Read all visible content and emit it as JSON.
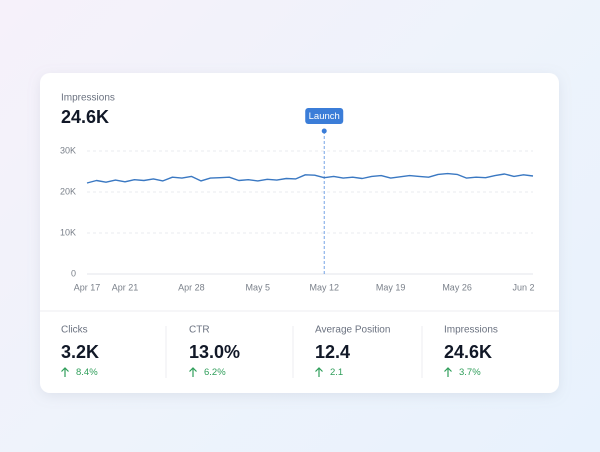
{
  "chart_data": {
    "type": "line",
    "title": "Impressions",
    "subtitle": "24.6K",
    "categories": [
      "Apr 17",
      null,
      null,
      null,
      "Apr 21",
      null,
      null,
      null,
      null,
      null,
      null,
      "Apr 28",
      null,
      null,
      null,
      null,
      null,
      null,
      "May 5",
      null,
      null,
      null,
      null,
      null,
      null,
      "May 12",
      null,
      null,
      null,
      null,
      null,
      null,
      "May 19",
      null,
      null,
      null,
      null,
      null,
      null,
      "May 26",
      null,
      null,
      null,
      null,
      null,
      null,
      "Jun 2",
      null
    ],
    "series": [
      {
        "name": "Impressions",
        "color": "#3a78c2",
        "values": [
          22200,
          22800,
          22400,
          22900,
          22500,
          23000,
          22800,
          23200,
          22700,
          23600,
          23400,
          23800,
          22700,
          23400,
          23500,
          23600,
          22800,
          23000,
          22700,
          23100,
          22900,
          23300,
          23200,
          24200,
          24100,
          23500,
          23800,
          23400,
          23600,
          23300,
          23800,
          24000,
          23400,
          23700,
          24000,
          23800,
          23600,
          24300,
          24500,
          24300,
          23400,
          23600,
          23500,
          24000,
          24400,
          23800,
          24200,
          23900
        ]
      }
    ],
    "ylim": [
      0,
      30000
    ],
    "yticks": [
      {
        "value": 0,
        "label": "0"
      },
      {
        "value": 10000,
        "label": "10K"
      },
      {
        "value": 20000,
        "label": "20K"
      },
      {
        "value": 30000,
        "label": "30K"
      }
    ],
    "grid": true,
    "annotations": [
      {
        "text": "Launch",
        "x": "May 12",
        "color": "#3b7dd8"
      }
    ]
  },
  "stats": [
    {
      "label": "Clicks",
      "value": "3.2K",
      "change": "8.4%"
    },
    {
      "label": "CTR",
      "value": "13.0%",
      "change": "6.2%"
    },
    {
      "label": "Average Position",
      "value": "12.4",
      "change": "2.1"
    },
    {
      "label": "Impressions",
      "value": "24.6K",
      "change": "3.7%"
    }
  ]
}
